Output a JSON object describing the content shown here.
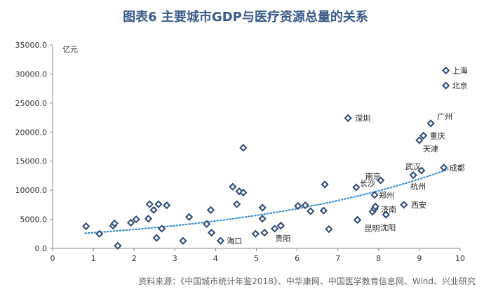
{
  "title": "图表6 主要城市GDP与医疗资源总量的关系",
  "source": "资料来源：《中国城市统计年鉴2018》、中华康网、中国医学教育信息网、Wind、兴业研究",
  "chart_data": {
    "type": "scatter",
    "ylabel": "亿元",
    "xlim": [
      0,
      10
    ],
    "ylim": [
      0,
      35000
    ],
    "x_ticks": [
      "0",
      "1",
      "2",
      "3",
      "4",
      "5",
      "6",
      "7",
      "8",
      "9",
      "10"
    ],
    "y_ticks": [
      "0.0",
      "5000.0",
      "10000.0",
      "15000.0",
      "20000.0",
      "25000.0",
      "30000.0",
      "35000.0"
    ],
    "marker_color": "#2e4a72",
    "trend_color": "#3d8fcf",
    "points": [
      {
        "x": 0.82,
        "y": 3800
      },
      {
        "x": 1.15,
        "y": 2500
      },
      {
        "x": 1.48,
        "y": 3900
      },
      {
        "x": 1.52,
        "y": 4300
      },
      {
        "x": 1.6,
        "y": 450
      },
      {
        "x": 1.92,
        "y": 4400
      },
      {
        "x": 2.05,
        "y": 5000
      },
      {
        "x": 2.35,
        "y": 5100
      },
      {
        "x": 2.38,
        "y": 7600
      },
      {
        "x": 2.48,
        "y": 6600
      },
      {
        "x": 2.55,
        "y": 1800
      },
      {
        "x": 2.6,
        "y": 7600
      },
      {
        "x": 2.68,
        "y": 3400
      },
      {
        "x": 2.8,
        "y": 7400
      },
      {
        "x": 3.2,
        "y": 1300
      },
      {
        "x": 3.35,
        "y": 5400
      },
      {
        "x": 3.78,
        "y": 4200
      },
      {
        "x": 3.88,
        "y": 6600
      },
      {
        "x": 3.9,
        "y": 2700
      },
      {
        "x": 4.42,
        "y": 10600
      },
      {
        "x": 4.52,
        "y": 7600
      },
      {
        "x": 4.58,
        "y": 9800
      },
      {
        "x": 4.68,
        "y": 9600
      },
      {
        "x": 4.68,
        "y": 17300
      },
      {
        "x": 4.98,
        "y": 2500
      },
      {
        "x": 5.15,
        "y": 5100
      },
      {
        "x": 5.15,
        "y": 7000
      },
      {
        "x": 5.2,
        "y": 2700
      },
      {
        "x": 5.45,
        "y": 3400
      },
      {
        "x": 5.6,
        "y": 3900
      },
      {
        "x": 6.02,
        "y": 7300
      },
      {
        "x": 6.2,
        "y": 7400
      },
      {
        "x": 6.33,
        "y": 6400
      },
      {
        "x": 6.65,
        "y": 6500
      },
      {
        "x": 6.68,
        "y": 11000
      },
      {
        "x": 6.78,
        "y": 3300
      },
      {
        "x": 7.48,
        "y": 4900
      },
      {
        "x": 7.85,
        "y": 6300
      },
      {
        "x": 7.9,
        "y": 6800
      },
      {
        "x": 8.18,
        "y": 5800
      }
    ],
    "labeled_points": [
      {
        "city": "上海",
        "x": 9.65,
        "y": 30600
      },
      {
        "city": "北京",
        "x": 9.65,
        "y": 28000
      },
      {
        "city": "深圳",
        "x": 7.25,
        "y": 22400
      },
      {
        "city": "广州",
        "x": 9.28,
        "y": 21500
      },
      {
        "city": "重庆",
        "x": 9.1,
        "y": 19400
      },
      {
        "city": "天津",
        "x": 9.0,
        "y": 18600
      },
      {
        "city": "武汉",
        "x": 9.05,
        "y": 13400
      },
      {
        "city": "成都",
        "x": 9.6,
        "y": 13900
      },
      {
        "city": "南京",
        "x": 8.05,
        "y": 11700
      },
      {
        "city": "杭州",
        "x": 8.85,
        "y": 12600
      },
      {
        "city": "长沙",
        "x": 7.45,
        "y": 10500
      },
      {
        "city": "郑州",
        "x": 7.9,
        "y": 9200
      },
      {
        "city": "济南",
        "x": 7.92,
        "y": 7200
      },
      {
        "city": "西安",
        "x": 8.62,
        "y": 7500
      },
      {
        "city": "昆明",
        "x": 7.48,
        "y": 4900
      },
      {
        "city": "沈阳",
        "x": 8.18,
        "y": 5800
      },
      {
        "city": "海口",
        "x": 4.12,
        "y": 1300
      },
      {
        "city": "贵阳",
        "x": 5.6,
        "y": 3900
      }
    ]
  }
}
